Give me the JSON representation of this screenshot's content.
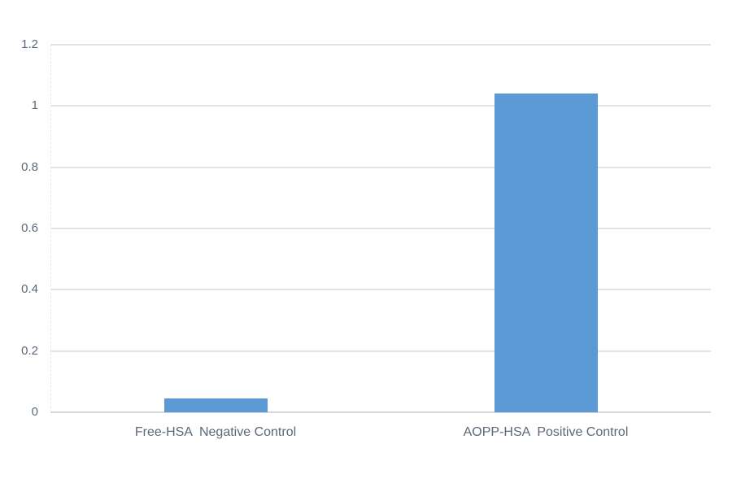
{
  "chart_data": {
    "type": "bar",
    "title": "",
    "xlabel": "",
    "ylabel": "",
    "categories": [
      "Free-HSA  Negative Control",
      "AOPP-HSA  Positive Control"
    ],
    "values": [
      0.045,
      1.04
    ],
    "ylim": [
      0,
      1.2
    ],
    "yticks": [
      0,
      0.2,
      0.4,
      0.6,
      0.8,
      1,
      1.2
    ],
    "ytick_labels": [
      "0",
      "0.2",
      "0.4",
      "0.6",
      "0.8",
      "1",
      "1.2"
    ],
    "grid": true,
    "legend": "none",
    "colors": {
      "bar_fill": "#5B9AD5",
      "gridline": "#E2E2E2",
      "axis_baseline": "#D7D7D7",
      "tick_text": "#5C6878",
      "background": "#FFFFFF"
    }
  }
}
